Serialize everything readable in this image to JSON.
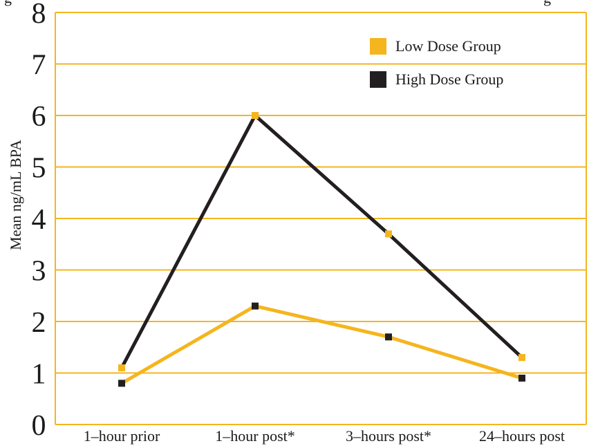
{
  "colors": {
    "low": "#f5b51e",
    "high": "#231f20",
    "grid": "#f5b51e",
    "frame": "#f5b51e"
  },
  "top_clipped_text": {
    "left": "g",
    "right": "g"
  },
  "chart_data": {
    "type": "line",
    "title": "",
    "ylabel": "Mean ng/mL BPA",
    "xlabel": "",
    "ylim": [
      0,
      8
    ],
    "yticks": [
      "0",
      "1",
      "2",
      "3",
      "4",
      "5",
      "6",
      "7",
      "8"
    ],
    "categories": [
      "1–hour prior",
      "1–hour post*",
      "3–hours post*",
      "24–hours post"
    ],
    "grid": true,
    "legend_position": "top-right",
    "series": [
      {
        "name": "Low Dose Group",
        "line_color": "#f5b51e",
        "marker_color": "#231f20",
        "values": [
          0.8,
          2.3,
          1.7,
          0.9
        ]
      },
      {
        "name": "High Dose Group",
        "line_color": "#231f20",
        "marker_color": "#f5b51e",
        "values": [
          1.1,
          6.0,
          3.7,
          1.3
        ]
      }
    ],
    "legend": [
      {
        "label": "Low Dose Group",
        "swatch_color": "#f5b51e"
      },
      {
        "label": "High Dose Group",
        "swatch_color": "#231f20"
      }
    ]
  }
}
